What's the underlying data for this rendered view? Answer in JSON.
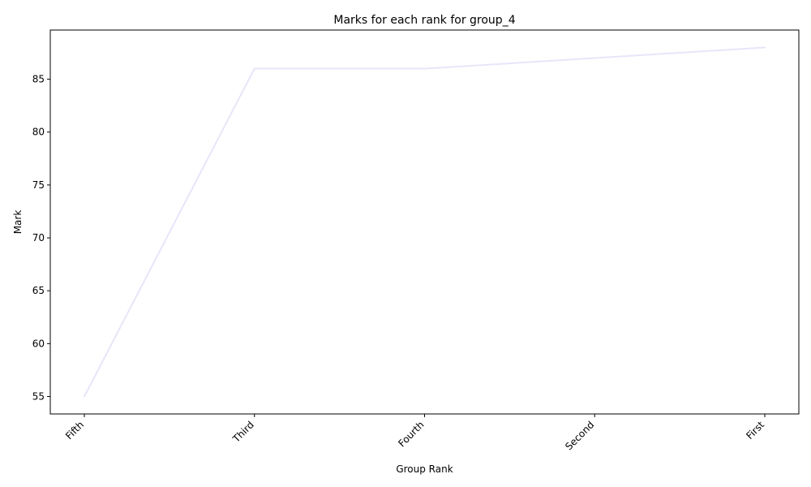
{
  "chart_data": {
    "type": "line",
    "title": "Marks for each rank for group_4",
    "xlabel": "Group Rank",
    "ylabel": "Mark",
    "categories": [
      "Fifth",
      "Third",
      "Fourth",
      "Second",
      "First"
    ],
    "series": [
      {
        "values": [
          55,
          86,
          86,
          87,
          88
        ],
        "color": "#e6e6fa"
      }
    ],
    "ylim": [
      53.35,
      89.65
    ],
    "yticks": [
      55,
      60,
      65,
      70,
      75,
      80,
      85
    ],
    "grid": false,
    "legend": "none"
  }
}
